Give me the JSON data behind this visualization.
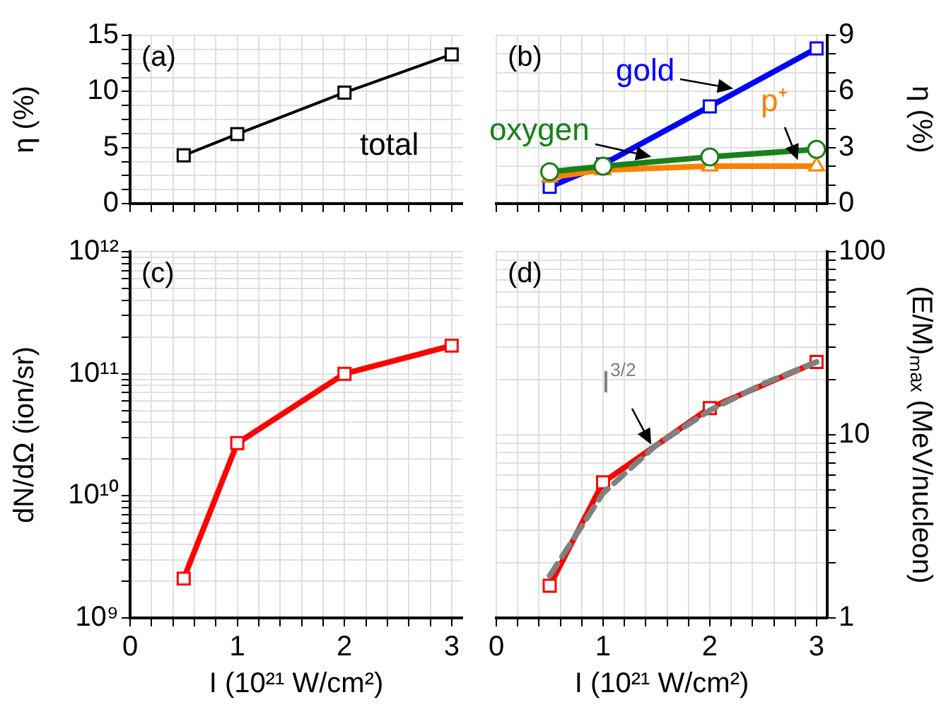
{
  "chart_data": [
    {
      "type": "line",
      "ylabel": "η (%)",
      "annotations": [
        "(a)"
      ],
      "x": [
        0.5,
        1,
        2,
        3
      ],
      "series": [
        {
          "name": "total",
          "color": "#000000",
          "values": [
            4.3,
            6.2,
            9.9,
            13.3
          ]
        }
      ],
      "xlim": [
        0,
        3.1
      ],
      "xticks": [
        0,
        {
          "value": 0.2,
          "label": null
        },
        {
          "value": 0.4,
          "label": null
        },
        {
          "value": 0.6,
          "label": null
        },
        {
          "value": 0.8,
          "label": null
        },
        1,
        {
          "value": 1.2,
          "label": null
        },
        {
          "value": 1.4,
          "label": null
        },
        {
          "value": 1.6,
          "label": null
        },
        {
          "value": 1.8,
          "label": null
        },
        2,
        {
          "value": 2.2,
          "label": null
        },
        {
          "value": 2.4,
          "label": null
        },
        {
          "value": 2.6,
          "label": null
        },
        {
          "value": 2.8,
          "label": null
        },
        3
      ],
      "ylim": [
        0,
        15
      ],
      "yticks": [
        0,
        {
          "value": 1.25,
          "label": null
        },
        {
          "value": 2.5,
          "label": null
        },
        {
          "value": 3.75,
          "label": null
        },
        5,
        {
          "value": 6.25,
          "label": null
        },
        {
          "value": 7.5,
          "label": null
        },
        {
          "value": 8.75,
          "label": null
        },
        10,
        {
          "value": 11.25,
          "label": null
        },
        {
          "value": 12.5,
          "label": null
        },
        {
          "value": 13.75,
          "label": null
        },
        15
      ],
      "grid": true,
      "marker": "square",
      "tick_labels": "y"
    },
    {
      "type": "line",
      "ylabel": "η (%)",
      "annotations": [
        "(b)"
      ],
      "x": [
        0.5,
        1,
        2,
        3
      ],
      "series": [
        {
          "name": "gold",
          "color": "#0000ff",
          "values": [
            0.9,
            2.1,
            5.2,
            8.3
          ],
          "marker": "square"
        },
        {
          "name": "p⁺",
          "color": "#ff8000",
          "values": [
            1.4,
            1.8,
            2.0,
            2.0
          ],
          "marker": "triangle"
        },
        {
          "name": "oxygen",
          "color": "#1a801a",
          "values": [
            1.7,
            2.0,
            2.5,
            2.9
          ],
          "marker": "circle"
        }
      ],
      "xlim": [
        0,
        3.1
      ],
      "xticks": [
        0,
        {
          "value": 0.2,
          "label": null
        },
        {
          "value": 0.4,
          "label": null
        },
        {
          "value": 0.6,
          "label": null
        },
        {
          "value": 0.8,
          "label": null
        },
        1,
        {
          "value": 1.2,
          "label": null
        },
        {
          "value": 1.4,
          "label": null
        },
        {
          "value": 1.6,
          "label": null
        },
        {
          "value": 1.8,
          "label": null
        },
        2,
        {
          "value": 2.2,
          "label": null
        },
        {
          "value": 2.4,
          "label": null
        },
        {
          "value": 2.6,
          "label": null
        },
        {
          "value": 2.8,
          "label": null
        },
        3
      ],
      "ylim": [
        0,
        9
      ],
      "yticks": [
        0,
        {
          "value": 1,
          "label": null
        },
        {
          "value": 2,
          "label": null
        },
        3,
        {
          "value": 4,
          "label": null
        },
        {
          "value": 5,
          "label": null
        },
        6,
        {
          "value": 7,
          "label": null
        },
        {
          "value": 8,
          "label": null
        },
        9
      ],
      "grid": true,
      "tick_labels": "y"
    },
    {
      "type": "line",
      "xlabel": "I (10²¹ W/cm²)",
      "ylabel": "dN/dΩ (ion/sr)",
      "annotations": [
        "(c)"
      ],
      "x": [
        0.5,
        1,
        2,
        3
      ],
      "series": [
        {
          "color": "#ff0000",
          "values": [
            2100000000.0,
            27000000000.0,
            100000000000.0,
            170000000000.0
          ]
        }
      ],
      "xlim": [
        0,
        3.1
      ],
      "xticks": [
        0,
        {
          "value": 0.2,
          "label": null
        },
        {
          "value": 0.4,
          "label": null
        },
        {
          "value": 0.6,
          "label": null
        },
        {
          "value": 0.8,
          "label": null
        },
        1,
        {
          "value": 1.2,
          "label": null
        },
        {
          "value": 1.4,
          "label": null
        },
        {
          "value": 1.6,
          "label": null
        },
        {
          "value": 1.8,
          "label": null
        },
        2,
        {
          "value": 2.2,
          "label": null
        },
        {
          "value": 2.4,
          "label": null
        },
        {
          "value": 2.6,
          "label": null
        },
        {
          "value": 2.8,
          "label": null
        },
        3
      ],
      "ylim": [
        1000000000.0,
        1000000000000.0
      ],
      "yticks": [
        {
          "value": 1000000000.0,
          "label": "10⁹"
        },
        {
          "value": 2000000000.0,
          "label": null
        },
        {
          "value": 3000000000.0,
          "label": null
        },
        {
          "value": 4000000000.0,
          "label": null
        },
        {
          "value": 5000000000.0,
          "label": null
        },
        {
          "value": 6000000000.0,
          "label": null
        },
        {
          "value": 7000000000.0,
          "label": null
        },
        {
          "value": 8000000000.0,
          "label": null
        },
        {
          "value": 9000000000.0,
          "label": null
        },
        {
          "value": 10000000000.0,
          "label": "10¹⁰"
        },
        {
          "value": 20000000000.0,
          "label": null
        },
        {
          "value": 30000000000.0,
          "label": null
        },
        {
          "value": 40000000000.0,
          "label": null
        },
        {
          "value": 50000000000.0,
          "label": null
        },
        {
          "value": 60000000000.0,
          "label": null
        },
        {
          "value": 70000000000.0,
          "label": null
        },
        {
          "value": 80000000000.0,
          "label": null
        },
        {
          "value": 90000000000.0,
          "label": null
        },
        {
          "value": 100000000000.0,
          "label": "10¹¹"
        },
        {
          "value": 200000000000.0,
          "label": null
        },
        {
          "value": 300000000000.0,
          "label": null
        },
        {
          "value": 400000000000.0,
          "label": null
        },
        {
          "value": 500000000000.0,
          "label": null
        },
        {
          "value": 600000000000.0,
          "label": null
        },
        {
          "value": 700000000000.0,
          "label": null
        },
        {
          "value": 800000000000.0,
          "label": null
        },
        {
          "value": 900000000000.0,
          "label": null
        },
        {
          "value": 1000000000000.0,
          "label": "10¹²"
        }
      ],
      "log": "y",
      "grid": true,
      "marker": "square"
    },
    {
      "type": "line",
      "xlabel": "I (10²¹ W/cm²)",
      "ylabel": "(E/M)ₘₐₓ (MeV/nucleon)",
      "annotations": [
        "(d)"
      ],
      "x": [
        0.5,
        1,
        2,
        3
      ],
      "series": [
        {
          "color": "#ff0000",
          "values": [
            1.5,
            5.5,
            14,
            25
          ],
          "marker": "square"
        },
        {
          "name": "I$^{3/2}$",
          "color": "#808080",
          "x": [
            0.5,
            1,
            1.5,
            2,
            2.5,
            3
          ],
          "values": [
            1.7,
            4.8,
            8.8,
            13.6,
            19,
            25
          ],
          "marker": "none",
          "line_style": "dashed"
        }
      ],
      "xlim": [
        0,
        3.1
      ],
      "xticks": [
        0,
        {
          "value": 0.2,
          "label": null
        },
        {
          "value": 0.4,
          "label": null
        },
        {
          "value": 0.6,
          "label": null
        },
        {
          "value": 0.8,
          "label": null
        },
        1,
        {
          "value": 1.2,
          "label": null
        },
        {
          "value": 1.4,
          "label": null
        },
        {
          "value": 1.6,
          "label": null
        },
        {
          "value": 1.8,
          "label": null
        },
        2,
        {
          "value": 2.2,
          "label": null
        },
        {
          "value": 2.4,
          "label": null
        },
        {
          "value": 2.6,
          "label": null
        },
        {
          "value": 2.8,
          "label": null
        },
        3
      ],
      "ylim": [
        1,
        100
      ],
      "yticks": [
        1,
        {
          "value": 2,
          "label": null
        },
        {
          "value": 3,
          "label": null
        },
        {
          "value": 4,
          "label": null
        },
        {
          "value": 5,
          "label": null
        },
        {
          "value": 6,
          "label": null
        },
        {
          "value": 7,
          "label": null
        },
        {
          "value": 8,
          "label": null
        },
        {
          "value": 9,
          "label": null
        },
        10,
        {
          "value": 20,
          "label": null
        },
        {
          "value": 30,
          "label": null
        },
        {
          "value": 40,
          "label": null
        },
        {
          "value": 50,
          "label": null
        },
        {
          "value": 60,
          "label": null
        },
        {
          "value": 70,
          "label": null
        },
        {
          "value": 80,
          "label": null
        },
        {
          "value": 90,
          "label": null
        },
        100
      ],
      "log": "y",
      "grid": true
    }
  ]
}
